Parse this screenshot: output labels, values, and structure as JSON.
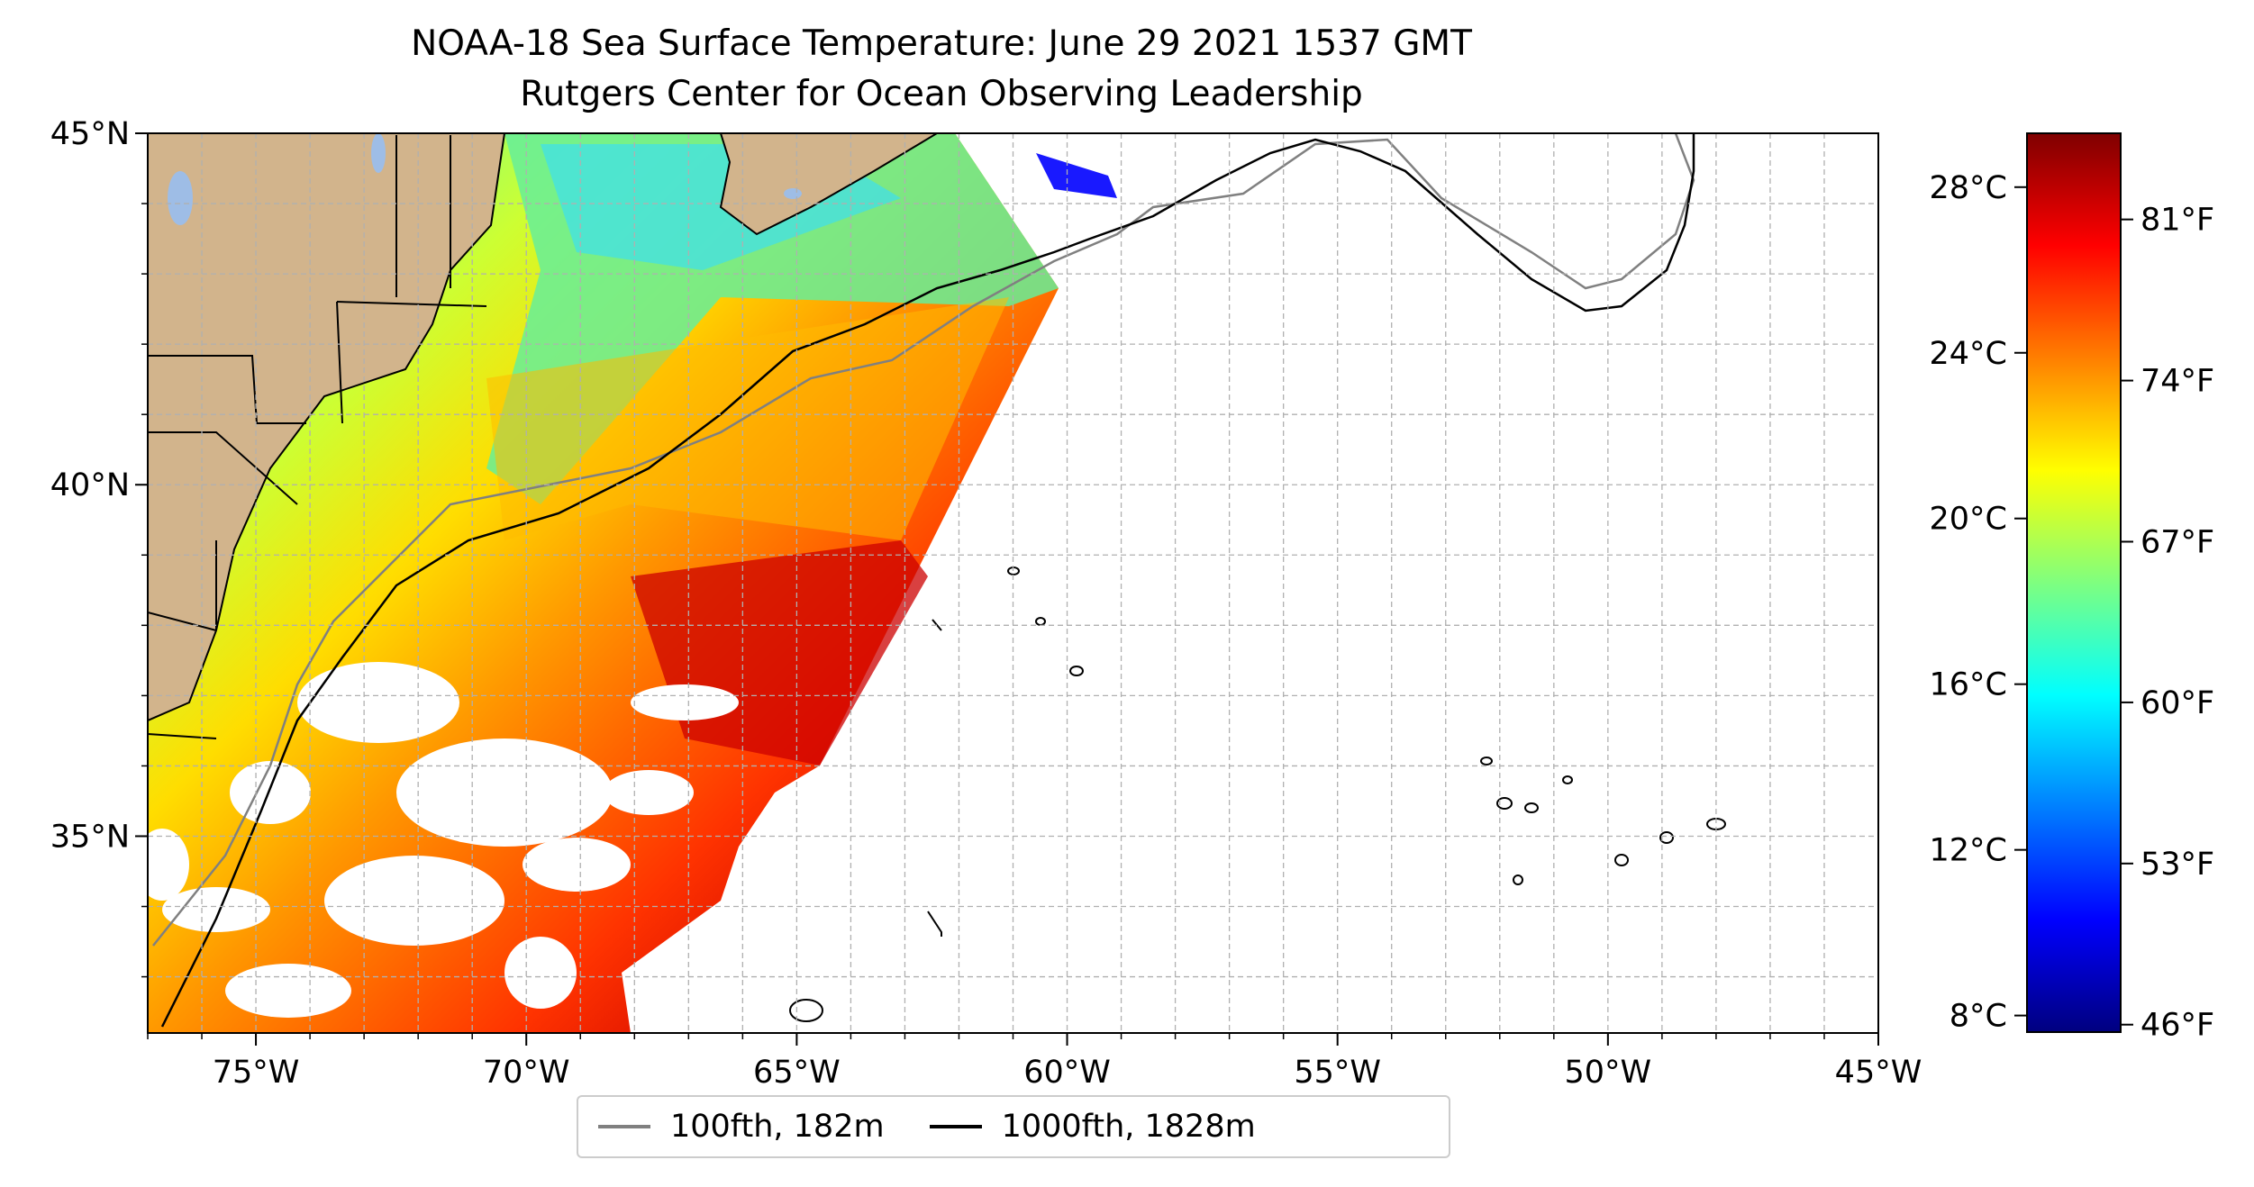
{
  "title": {
    "line1": "NOAA-18 Sea Surface Temperature: June 29 2021 1537 GMT",
    "line2": "Rutgers Center for Ocean Observing Leadership"
  },
  "map": {
    "lon_range": [
      -77,
      -45
    ],
    "lat_range": [
      32.2,
      45
    ],
    "lon_ticks": [
      {
        "value": -75,
        "label": "75°W"
      },
      {
        "value": -70,
        "label": "70°W"
      },
      {
        "value": -65,
        "label": "65°W"
      },
      {
        "value": -60,
        "label": "60°W"
      },
      {
        "value": -55,
        "label": "55°W"
      },
      {
        "value": -50,
        "label": "50°W"
      },
      {
        "value": -45,
        "label": "45°W"
      }
    ],
    "lat_ticks": [
      {
        "value": 35,
        "label": "35°N"
      },
      {
        "value": 40,
        "label": "40°N"
      },
      {
        "value": 45,
        "label": "45°N"
      }
    ],
    "colors": {
      "land": "#d2b48c",
      "lakes": "#9ebde6",
      "isobath_100": "#808080",
      "isobath_1000": "#000000",
      "grid": "#b0b0b0"
    }
  },
  "legend": {
    "items": [
      {
        "label": "100fth, 182m",
        "color": "#808080"
      },
      {
        "label": "1000fth, 1828m",
        "color": "#000000"
      }
    ]
  },
  "colorbar": {
    "range_c": [
      7.6,
      29.3
    ],
    "celsius_ticks": [
      {
        "value": 8,
        "label": "8°C"
      },
      {
        "value": 12,
        "label": "12°C"
      },
      {
        "value": 16,
        "label": "16°C"
      },
      {
        "value": 20,
        "label": "20°C"
      },
      {
        "value": 24,
        "label": "24°C"
      },
      {
        "value": 28,
        "label": "28°C"
      }
    ],
    "fahrenheit_ticks": [
      {
        "value_c": 7.78,
        "label": "46°F"
      },
      {
        "value_c": 11.67,
        "label": "53°F"
      },
      {
        "value_c": 15.56,
        "label": "60°F"
      },
      {
        "value_c": 19.44,
        "label": "67°F"
      },
      {
        "value_c": 23.33,
        "label": "74°F"
      },
      {
        "value_c": 27.22,
        "label": "81°F"
      }
    ],
    "colormap": [
      "#00007f",
      "#0000ff",
      "#007fff",
      "#00ffff",
      "#7fff7f",
      "#ffff00",
      "#ff7f00",
      "#ff0000",
      "#7f0000"
    ]
  }
}
